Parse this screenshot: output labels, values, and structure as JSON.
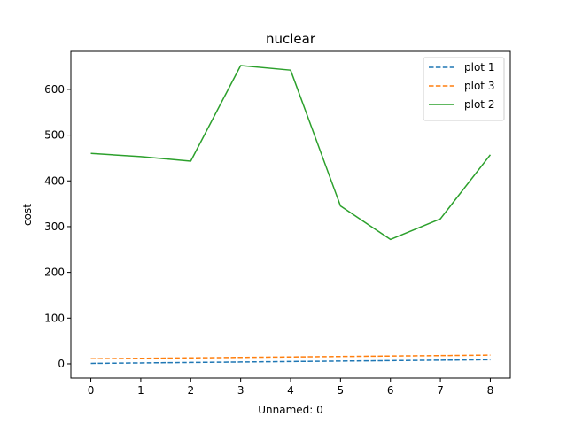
{
  "chart_data": {
    "type": "line",
    "title": "nuclear",
    "xlabel": "Unnamed: 0",
    "ylabel": "cost",
    "x": [
      0,
      1,
      2,
      3,
      4,
      5,
      6,
      7,
      8
    ],
    "xlim": [
      -0.4,
      8.4
    ],
    "ylim": [
      -31,
      683
    ],
    "xticks": [
      0,
      1,
      2,
      3,
      4,
      5,
      6,
      7,
      8
    ],
    "yticks": [
      0,
      100,
      200,
      300,
      400,
      500,
      600
    ],
    "grid": false,
    "legend_position": "top-right",
    "series": [
      {
        "name": "plot 1",
        "color": "#1f77b4",
        "dash": "dashed",
        "values": [
          1,
          2,
          3,
          4,
          5,
          6,
          7,
          8,
          9
        ]
      },
      {
        "name": "plot 3",
        "color": "#ff7f0e",
        "dash": "dashed",
        "values": [
          11,
          12,
          13,
          14,
          15,
          16,
          17,
          18,
          19
        ]
      },
      {
        "name": "plot 2",
        "color": "#2ca02c",
        "dash": "solid",
        "values": [
          460,
          453,
          443,
          652,
          642,
          345,
          272,
          317,
          457
        ]
      }
    ]
  }
}
